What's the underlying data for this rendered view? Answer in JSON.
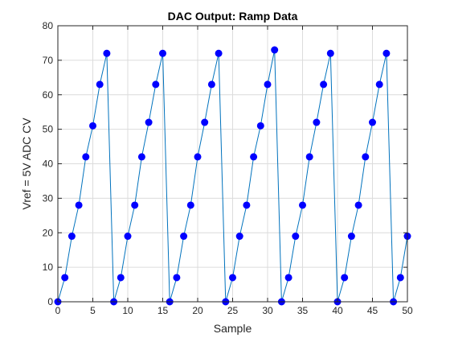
{
  "chart_data": {
    "type": "line",
    "title": "DAC Output: Ramp Data",
    "xlabel": "Sample",
    "ylabel": "Vref = 5V ADC CV",
    "xlim": [
      0,
      50
    ],
    "ylim": [
      0,
      80
    ],
    "xticks": [
      0,
      5,
      10,
      15,
      20,
      25,
      30,
      35,
      40,
      45,
      50
    ],
    "yticks": [
      0,
      10,
      20,
      30,
      40,
      50,
      60,
      70,
      80
    ],
    "grid": true,
    "legend": "none",
    "series": [
      {
        "color": "#0072bd",
        "marker_color": "#0000ff",
        "marker": "filled-circle",
        "x": [
          0,
          1,
          2,
          3,
          4,
          5,
          6,
          7,
          8,
          9,
          10,
          11,
          12,
          13,
          14,
          15,
          16,
          17,
          18,
          19,
          20,
          21,
          22,
          23,
          24,
          25,
          26,
          27,
          28,
          29,
          30,
          31,
          32,
          33,
          34,
          35,
          36,
          37,
          38,
          39,
          40,
          41,
          42,
          43,
          44,
          45,
          46,
          47,
          48,
          49,
          50
        ],
        "y": [
          0,
          7,
          19,
          28,
          42,
          51,
          63,
          72,
          0,
          7,
          19,
          28,
          42,
          52,
          63,
          72,
          0,
          7,
          19,
          28,
          42,
          52,
          63,
          72,
          0,
          7,
          19,
          28,
          42,
          51,
          63,
          73,
          0,
          7,
          19,
          28,
          42,
          52,
          63,
          72,
          0,
          7,
          19,
          28,
          42,
          52,
          63,
          72,
          0,
          7,
          19
        ]
      }
    ]
  }
}
